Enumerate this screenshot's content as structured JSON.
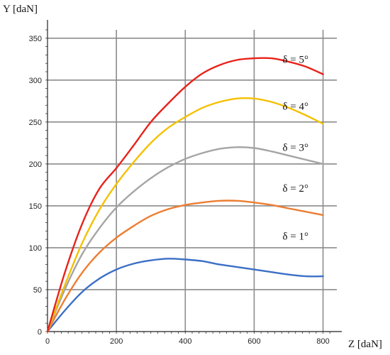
{
  "chart_data": {
    "type": "line",
    "title": "",
    "xlabel": "Z [daN]",
    "ylabel": "Y [daN]",
    "xlim": [
      0,
      840
    ],
    "ylim": [
      0,
      360
    ],
    "xticks": [
      0,
      200,
      400,
      600,
      800
    ],
    "yticks": [
      0,
      50,
      100,
      150,
      200,
      250,
      300,
      350
    ],
    "grid": true,
    "legend": "none",
    "series": [
      {
        "color": "#3b6fc6",
        "points": [
          [
            0,
            0
          ],
          [
            50,
            25
          ],
          [
            100,
            47
          ],
          [
            150,
            63
          ],
          [
            200,
            74
          ],
          [
            250,
            81
          ],
          [
            300,
            85
          ],
          [
            350,
            87
          ],
          [
            400,
            86
          ],
          [
            450,
            84
          ],
          [
            500,
            80
          ],
          [
            550,
            77
          ],
          [
            600,
            74
          ],
          [
            650,
            71
          ],
          [
            700,
            68
          ],
          [
            750,
            66
          ],
          [
            800,
            66
          ]
        ]
      },
      {
        "color": "#ed7d31",
        "points": [
          [
            0,
            0
          ],
          [
            50,
            38
          ],
          [
            100,
            70
          ],
          [
            150,
            94
          ],
          [
            200,
            112
          ],
          [
            250,
            126
          ],
          [
            300,
            138
          ],
          [
            350,
            146
          ],
          [
            400,
            151
          ],
          [
            450,
            154
          ],
          [
            500,
            156
          ],
          [
            550,
            156
          ],
          [
            600,
            154
          ],
          [
            650,
            151
          ],
          [
            700,
            147
          ],
          [
            750,
            143
          ],
          [
            800,
            139
          ]
        ]
      },
      {
        "color": "#a5a5a5",
        "points": [
          [
            0,
            0
          ],
          [
            50,
            50
          ],
          [
            100,
            92
          ],
          [
            150,
            123
          ],
          [
            200,
            148
          ],
          [
            250,
            167
          ],
          [
            300,
            183
          ],
          [
            350,
            196
          ],
          [
            400,
            206
          ],
          [
            450,
            213
          ],
          [
            500,
            218
          ],
          [
            550,
            220
          ],
          [
            600,
            219
          ],
          [
            650,
            215
          ],
          [
            700,
            210
          ],
          [
            750,
            205
          ],
          [
            800,
            200
          ]
        ]
      },
      {
        "color": "#f5c000",
        "points": [
          [
            0,
            0
          ],
          [
            50,
            55
          ],
          [
            100,
            105
          ],
          [
            150,
            145
          ],
          [
            200,
            176
          ],
          [
            250,
            202
          ],
          [
            300,
            225
          ],
          [
            350,
            243
          ],
          [
            400,
            256
          ],
          [
            450,
            267
          ],
          [
            500,
            274
          ],
          [
            550,
            278
          ],
          [
            600,
            278
          ],
          [
            650,
            274
          ],
          [
            700,
            267
          ],
          [
            750,
            258
          ],
          [
            800,
            248
          ]
        ]
      },
      {
        "color": "#e8221a",
        "points": [
          [
            0,
            0
          ],
          [
            50,
            70
          ],
          [
            100,
            128
          ],
          [
            150,
            170
          ],
          [
            200,
            195
          ],
          [
            250,
            222
          ],
          [
            300,
            250
          ],
          [
            350,
            272
          ],
          [
            400,
            292
          ],
          [
            450,
            308
          ],
          [
            500,
            318
          ],
          [
            550,
            324
          ],
          [
            600,
            326
          ],
          [
            650,
            326
          ],
          [
            700,
            322
          ],
          [
            750,
            316
          ],
          [
            800,
            307
          ]
        ]
      }
    ],
    "annotations": [
      {
        "text": "δ = 1°",
        "x": 720,
        "y": 114
      },
      {
        "text": "δ = 2°",
        "x": 720,
        "y": 171
      },
      {
        "text": "δ = 3°",
        "x": 720,
        "y": 220
      },
      {
        "text": "δ = 4°",
        "x": 720,
        "y": 269
      },
      {
        "text": "δ = 5°",
        "x": 720,
        "y": 325
      }
    ]
  }
}
